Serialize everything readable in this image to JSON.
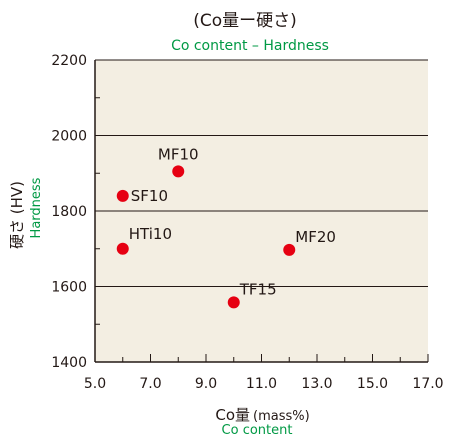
{
  "chart_data": {
    "type": "scatter",
    "title": "(Co量ー硬さ)",
    "subtitle": "Co content – Hardness",
    "xlabel": "Co量",
    "xlabel_unit": "(mass%)",
    "xlabel_en": "Co content",
    "ylabel": "硬さ (HV)",
    "ylabel_en": "Hardness",
    "xlim": [
      5.0,
      17.0
    ],
    "ylim": [
      1400,
      2200
    ],
    "x_ticks": [
      "5.0",
      "7.0",
      "9.0",
      "11.0",
      "13.0",
      "15.0",
      "17.0"
    ],
    "y_ticks": [
      "1400",
      "1600",
      "1800",
      "2000",
      "2200"
    ],
    "points": [
      {
        "label": "MF10",
        "x": 8.0,
        "y": 1905
      },
      {
        "label": "SF10",
        "x": 6.0,
        "y": 1840
      },
      {
        "label": "HTi10",
        "x": 6.0,
        "y": 1700
      },
      {
        "label": "MF20",
        "x": 12.0,
        "y": 1697
      },
      {
        "label": "TF15",
        "x": 10.0,
        "y": 1558
      }
    ],
    "grid": "horizontal",
    "colors": {
      "plot_bg": "#f3eee2",
      "point": "#e60012",
      "english_text": "#009944",
      "text": "#231815"
    }
  }
}
